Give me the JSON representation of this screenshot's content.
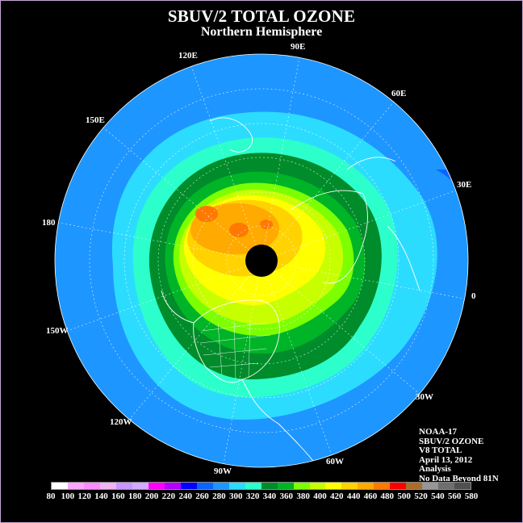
{
  "title": "SBUV/2 TOTAL OZONE",
  "subtitle": "Northern Hemisphere",
  "longitude_labels": [
    "90E",
    "60E",
    "30E",
    "0",
    "30W",
    "60W",
    "90W",
    "120W",
    "150W",
    "180",
    "150E",
    "120E"
  ],
  "info": [
    "NOAA-17",
    "SBUV/2 OZONE",
    "V8 TOTAL",
    "April 13, 2012",
    "Analysis",
    "No Data Beyond 81N"
  ],
  "colorbar": {
    "ticks": [
      "80",
      "100",
      "120",
      "140",
      "160",
      "180",
      "200",
      "220",
      "240",
      "260",
      "280",
      "300",
      "320",
      "340",
      "360",
      "380",
      "400",
      "420",
      "440",
      "460",
      "480",
      "500",
      "520",
      "540",
      "560",
      "580"
    ],
    "colors": [
      "#ffffff",
      "#ffa6ff",
      "#ff8cff",
      "#f0b4f0",
      "#c896ff",
      "#d2aaff",
      "#ff00ff",
      "#b400ff",
      "#0000ff",
      "#0a64ff",
      "#1e96ff",
      "#2cdcff",
      "#2cffcc",
      "#008c2a",
      "#00b428",
      "#7cff00",
      "#c8ff00",
      "#ffff00",
      "#ffd200",
      "#ffaa00",
      "#ff7800",
      "#ff0000",
      "#aa6e28",
      "#969696",
      "#6e6e6e",
      "#505050"
    ]
  }
}
